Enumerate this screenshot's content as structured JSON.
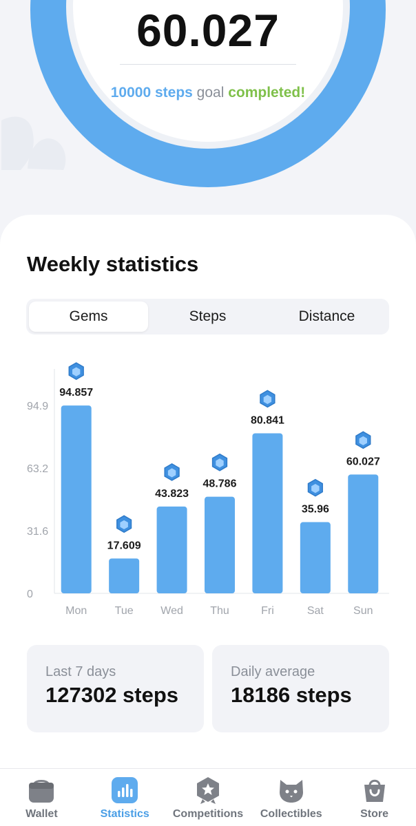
{
  "header": {
    "gem_count": "60.027",
    "goal_steps": "10000 steps",
    "goal_middle": " goal ",
    "goal_status": "completed!"
  },
  "weekly": {
    "title": "Weekly statistics",
    "tabs": [
      {
        "label": "Gems",
        "active": true
      },
      {
        "label": "Steps",
        "active": false
      },
      {
        "label": "Distance",
        "active": false
      }
    ]
  },
  "chart_data": {
    "type": "bar",
    "categories": [
      "Mon",
      "Tue",
      "Wed",
      "Thu",
      "Fri",
      "Sat",
      "Sun"
    ],
    "values": [
      94.857,
      17.609,
      43.823,
      48.786,
      80.841,
      35.96,
      60.027
    ],
    "value_labels": [
      "94.857",
      "17.609",
      "43.823",
      "48.786",
      "80.841",
      "35.96",
      "60.027"
    ],
    "y_ticks": [
      0,
      31.6,
      63.2,
      94.9
    ],
    "y_tick_labels": [
      "0",
      "31.6",
      "63.2",
      "94.9"
    ],
    "ylim": [
      0,
      94.9
    ],
    "grid": false,
    "bar_color": "#5eabee",
    "marker_icon": "gem-icon"
  },
  "summary": {
    "last7_label": "Last 7 days",
    "last7_value": "127302 steps",
    "avg_label": "Daily average",
    "avg_value": "18186 steps"
  },
  "nav": {
    "items": [
      {
        "label": "Wallet",
        "icon": "wallet-icon",
        "active": false
      },
      {
        "label": "Statistics",
        "icon": "statistics-icon",
        "active": true
      },
      {
        "label": "Competitions",
        "icon": "competitions-icon",
        "active": false
      },
      {
        "label": "Collectibles",
        "icon": "collectibles-icon",
        "active": false
      },
      {
        "label": "Store",
        "icon": "store-icon",
        "active": false
      }
    ]
  },
  "colors": {
    "accent": "#5eabee",
    "goal_completed": "#7fc04a",
    "nav_active": "#4a9ee6"
  }
}
